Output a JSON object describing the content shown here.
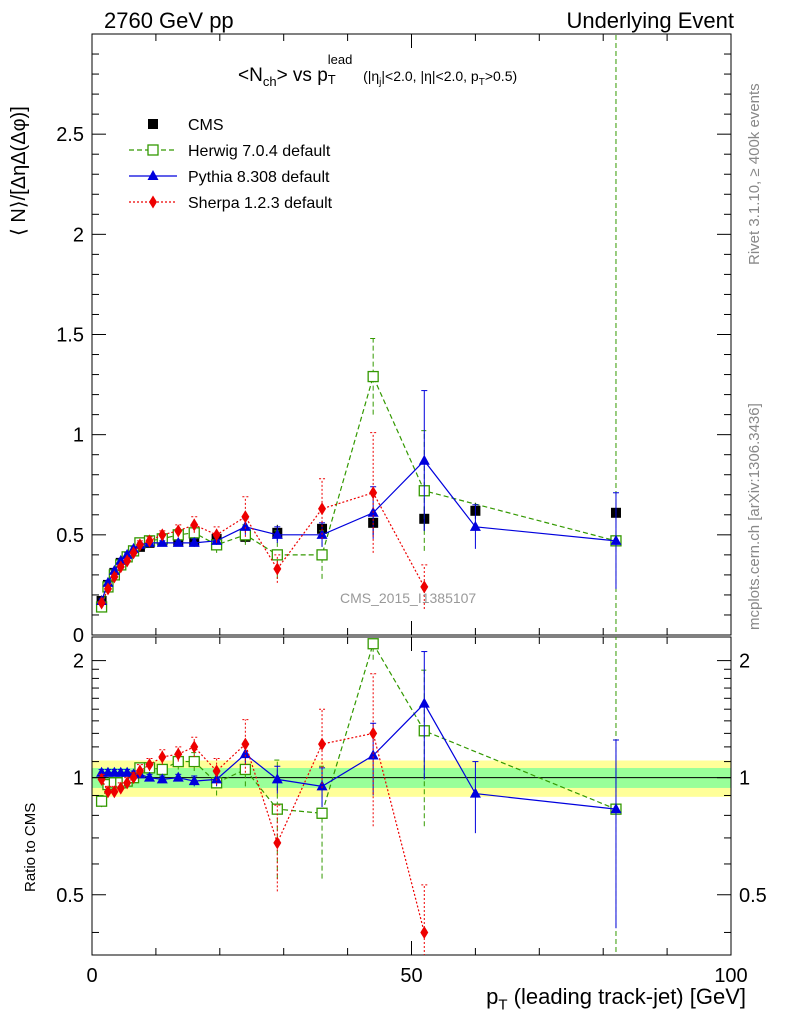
{
  "header": {
    "left": "2760 GeV pp",
    "right": "Underlying Event"
  },
  "side_text": {
    "rivet": "Rivet 3.1.10, ≥ 400k events",
    "mcplots": "mcplots.cern.ch [arXiv:1306.3436]"
  },
  "watermark": "CMS_2015_I1385107",
  "chart_data": {
    "type": "line",
    "title": {
      "main": "<N",
      "main_sub": "ch",
      "main2": "> vs p",
      "p_sub": "T",
      "p_sup": "lead",
      "cuts": "(|η",
      "cuts_sub": "j",
      "cuts2": "|<2.0, |η|<2.0, p",
      "cuts_sub2": "T",
      "cuts3": ">0.5)"
    },
    "xlabel": "p",
    "xlabel_sub": "T",
    "xlabel_rest": " (leading track-jet) [GeV]",
    "ylabel": "⟨ N⟩/[ΔηΔ(Δφ)]",
    "ratio_ylabel": "Ratio to CMS",
    "xlim": [
      0,
      100
    ],
    "ylim": [
      0,
      3.0
    ],
    "ratio_ylim": [
      0.35,
      2.3
    ],
    "xticks": [
      0,
      50,
      100
    ],
    "yticks": [
      0,
      0.5,
      1,
      1.5,
      2,
      2.5
    ],
    "ratio_yticks": [
      0.5,
      1,
      2
    ],
    "legend_position": "top-left",
    "data": {
      "name": "CMS",
      "color": "#000000",
      "x": [
        1.5,
        2.5,
        3.5,
        4.5,
        5.5,
        6.5,
        7.5,
        9,
        11,
        13.5,
        16,
        19.5,
        24,
        29,
        36,
        44,
        52,
        60,
        82
      ],
      "y": [
        0.17,
        0.25,
        0.31,
        0.36,
        0.39,
        0.42,
        0.44,
        0.46,
        0.47,
        0.47,
        0.47,
        0.48,
        0.49,
        0.51,
        0.53,
        0.56,
        0.58,
        0.62,
        0.61
      ],
      "err": [
        0.01,
        0.01,
        0.01,
        0.01,
        0.01,
        0.01,
        0.01,
        0.01,
        0.01,
        0.01,
        0.01,
        0.02,
        0.03,
        0.04,
        0.04,
        0.06,
        0.06,
        0.04,
        0.05
      ]
    },
    "series": [
      {
        "name": "Herwig 7.0.4 default",
        "color": "#339900",
        "marker": "open-square",
        "dash": "5,3",
        "x": [
          1.5,
          2.5,
          3.5,
          4.5,
          5.5,
          6.5,
          7.5,
          9,
          11,
          13.5,
          16,
          19.5,
          24,
          29,
          36,
          44,
          52,
          82
        ],
        "y": [
          0.14,
          0.24,
          0.3,
          0.35,
          0.39,
          0.42,
          0.46,
          0.47,
          0.48,
          0.5,
          0.51,
          0.45,
          0.5,
          0.4,
          0.4,
          1.29,
          0.72,
          0.47
        ],
        "err": [
          0.02,
          0.02,
          0.02,
          0.02,
          0.02,
          0.02,
          0.02,
          0.02,
          0.02,
          0.03,
          0.04,
          0.04,
          0.05,
          0.12,
          0.12,
          0.19,
          0.3,
          2.8
        ],
        "ratio": [
          0.87,
          0.96,
          0.97,
          0.97,
          0.98,
          1.0,
          1.06,
          1.06,
          1.05,
          1.1,
          1.1,
          0.97,
          1.05,
          0.83,
          0.81,
          2.21,
          1.32,
          0.83
        ],
        "ratio_err": [
          0.03,
          0.03,
          0.03,
          0.03,
          0.03,
          0.03,
          0.03,
          0.03,
          0.03,
          0.05,
          0.06,
          0.07,
          0.1,
          0.28,
          0.26,
          0.2,
          0.57,
          2.0
        ]
      },
      {
        "name": "Pythia 8.308 default",
        "color": "#0000dd",
        "marker": "filled-triangle",
        "dash": "",
        "x": [
          1.5,
          2.5,
          3.5,
          4.5,
          5.5,
          6.5,
          7.5,
          9,
          11,
          13.5,
          16,
          19.5,
          24,
          29,
          36,
          44,
          52,
          60,
          82
        ],
        "y": [
          0.17,
          0.26,
          0.32,
          0.37,
          0.4,
          0.43,
          0.45,
          0.46,
          0.46,
          0.46,
          0.46,
          0.47,
          0.54,
          0.5,
          0.5,
          0.61,
          0.87,
          0.54,
          0.47
        ],
        "err": [
          0.01,
          0.01,
          0.01,
          0.01,
          0.01,
          0.01,
          0.01,
          0.01,
          0.01,
          0.01,
          0.02,
          0.02,
          0.04,
          0.04,
          0.06,
          0.13,
          0.35,
          0.11,
          0.24
        ],
        "ratio": [
          1.03,
          1.03,
          1.03,
          1.03,
          1.03,
          1.02,
          1.02,
          1.0,
          0.99,
          1.0,
          0.98,
          0.99,
          1.15,
          0.99,
          0.95,
          1.14,
          1.55,
          0.91,
          0.83
        ],
        "ratio_err": [
          0.02,
          0.02,
          0.02,
          0.02,
          0.02,
          0.02,
          0.02,
          0.02,
          0.02,
          0.02,
          0.03,
          0.04,
          0.07,
          0.08,
          0.11,
          0.24,
          0.56,
          0.19,
          0.42
        ]
      },
      {
        "name": "Sherpa 1.2.3 default",
        "color": "#ee0000",
        "marker": "filled-diamond",
        "dash": "2,2",
        "x": [
          1.5,
          2.5,
          3.5,
          4.5,
          5.5,
          6.5,
          7.5,
          9,
          11,
          13.5,
          16,
          19.5,
          24,
          29,
          36,
          44,
          52
        ],
        "y": [
          0.16,
          0.23,
          0.29,
          0.34,
          0.37,
          0.41,
          0.45,
          0.47,
          0.5,
          0.52,
          0.55,
          0.5,
          0.59,
          0.33,
          0.63,
          0.71,
          0.24
        ],
        "err": [
          0.01,
          0.01,
          0.01,
          0.01,
          0.01,
          0.01,
          0.02,
          0.02,
          0.02,
          0.03,
          0.04,
          0.04,
          0.1,
          0.07,
          0.15,
          0.3,
          0.11
        ],
        "ratio": [
          0.99,
          0.92,
          0.92,
          0.94,
          0.97,
          1.0,
          1.04,
          1.08,
          1.13,
          1.15,
          1.2,
          1.04,
          1.22,
          0.68,
          1.22,
          1.3,
          0.4
        ],
        "ratio_err": [
          0.03,
          0.03,
          0.03,
          0.03,
          0.03,
          0.03,
          0.04,
          0.04,
          0.05,
          0.05,
          0.07,
          0.08,
          0.19,
          0.17,
          0.28,
          0.55,
          0.13
        ]
      }
    ],
    "ratio_band": {
      "x_edges": [
        0,
        45,
        100
      ],
      "inner_color": "#99ff99",
      "outer_color": "#ffff99"
    }
  }
}
